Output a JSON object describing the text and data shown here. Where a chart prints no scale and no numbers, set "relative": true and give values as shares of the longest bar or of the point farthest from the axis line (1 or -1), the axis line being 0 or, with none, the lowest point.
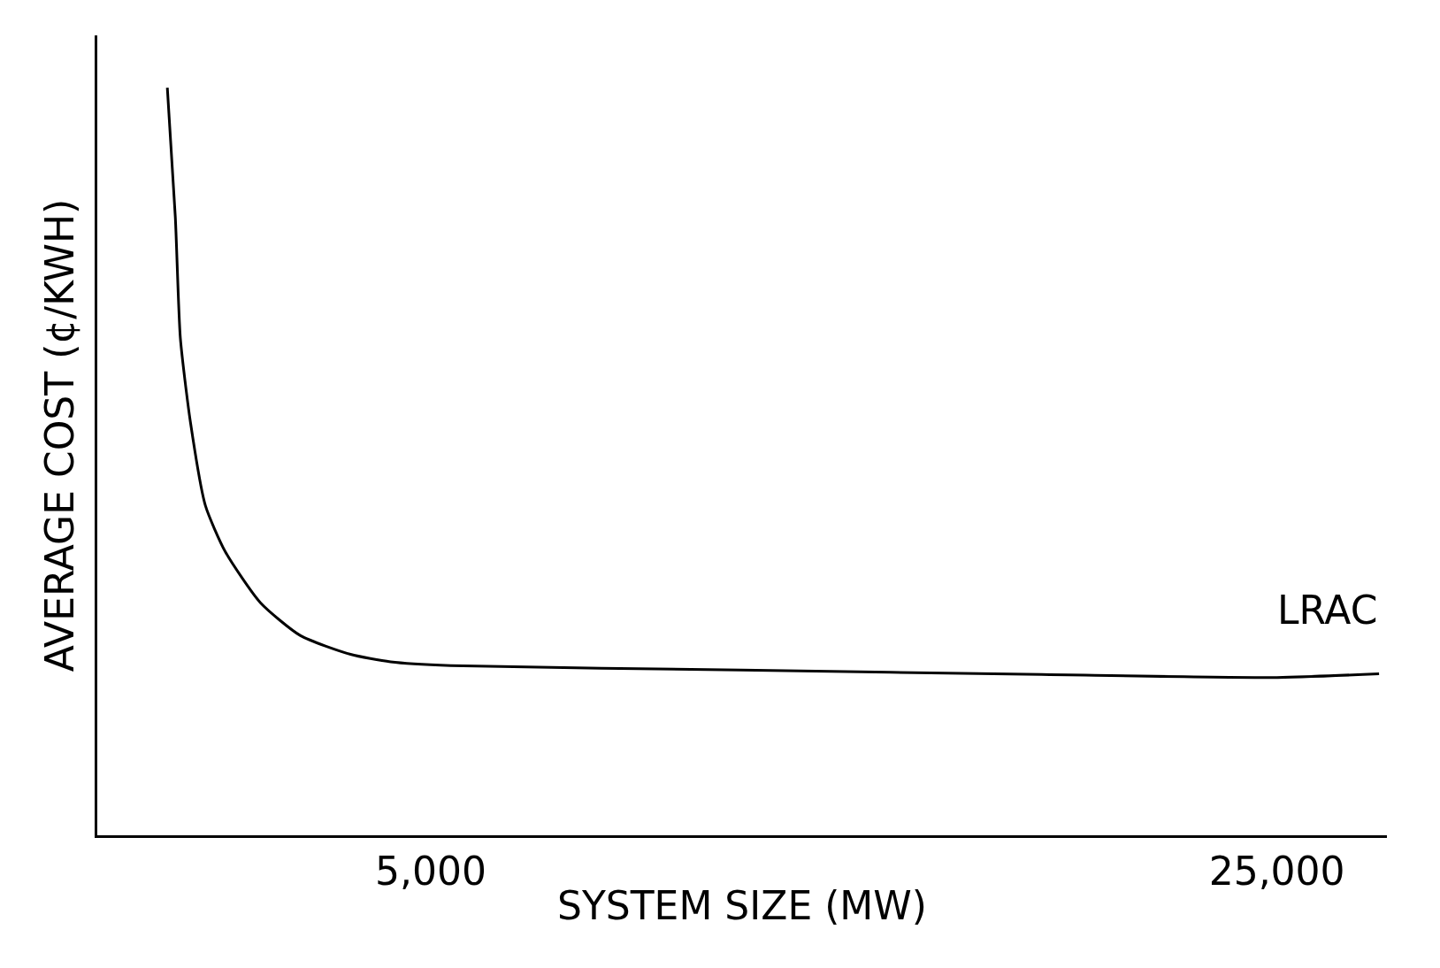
{
  "chart_data": {
    "type": "line",
    "relative": true,
    "xlabel": "SYSTEM SIZE (MW)",
    "ylabel": "AVERAGE COST (¢/KWH)",
    "xlim": [
      -2880,
      27600
    ],
    "xticks": [
      {
        "value": 5000,
        "label": "5,000"
      },
      {
        "value": 25000,
        "label": "25,000"
      }
    ],
    "legend": false,
    "marker": "none",
    "line_style": "solid",
    "series": [
      {
        "name": "LRAC",
        "color": "#000000",
        "x": [
          -1225,
          -1035,
          -917,
          -680,
          -325,
          148,
          976,
          1923,
          3107,
          4053,
          5473,
          12337,
          19438,
          24882,
          27414
        ],
        "values": [
          1.0,
          0.826,
          0.665,
          0.553,
          0.441,
          0.379,
          0.311,
          0.267,
          0.242,
          0.232,
          0.227,
          0.221,
          0.215,
          0.211,
          0.216
        ]
      }
    ]
  }
}
